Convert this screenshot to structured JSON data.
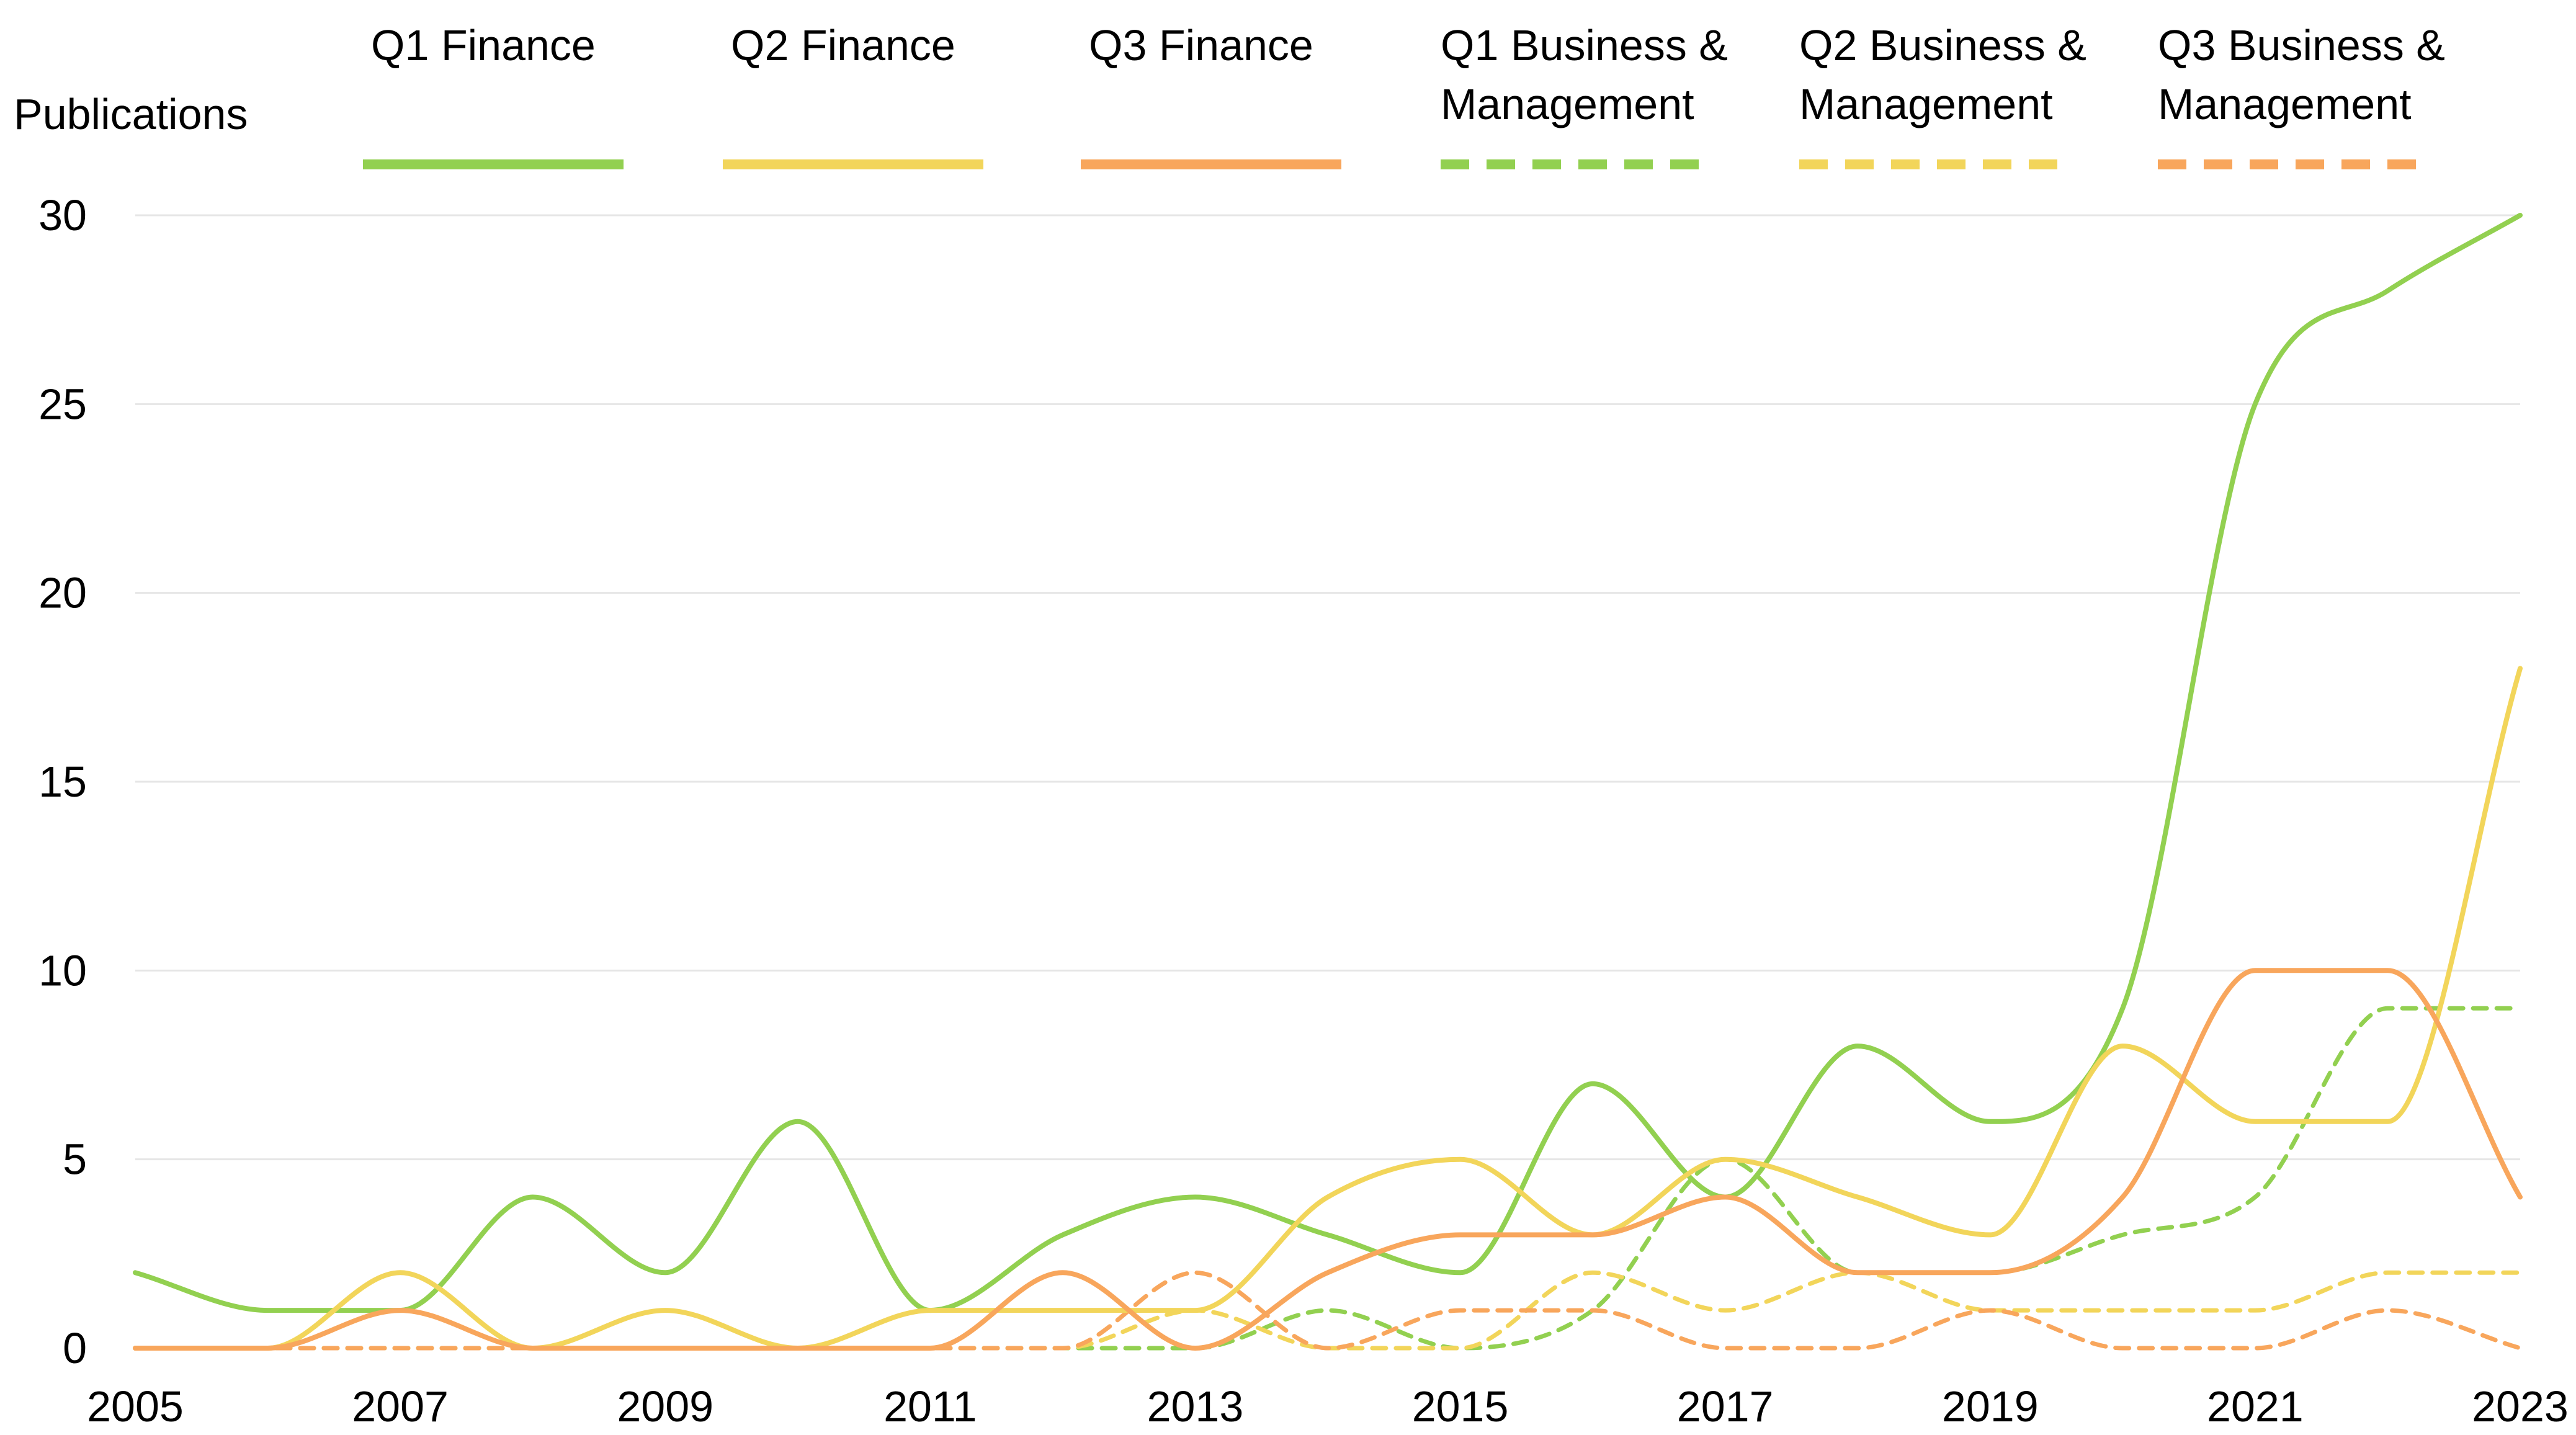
{
  "chart_data": {
    "type": "line",
    "ylabel": "Publications",
    "xlabel": "",
    "ylim": [
      0,
      30
    ],
    "yticks": [
      0,
      5,
      10,
      15,
      20,
      25,
      30
    ],
    "xlim": [
      2005,
      2023
    ],
    "xticks": [
      2005,
      2007,
      2009,
      2011,
      2013,
      2015,
      2017,
      2019,
      2021,
      2023
    ],
    "x": [
      2005,
      2006,
      2007,
      2008,
      2009,
      2010,
      2011,
      2012,
      2013,
      2014,
      2015,
      2016,
      2017,
      2018,
      2019,
      2020,
      2021,
      2022,
      2023
    ],
    "grid": true,
    "legend_position": "top",
    "series": [
      {
        "name": "Q1 Finance",
        "name_lines": [
          "Q1 Finance"
        ],
        "color": "#92d050",
        "dashed": false,
        "values": [
          2,
          1,
          1,
          4,
          2,
          6,
          1,
          3,
          4,
          3,
          2,
          7,
          4,
          8,
          6,
          9,
          25,
          28,
          30
        ]
      },
      {
        "name": "Q2 Finance",
        "name_lines": [
          "Q2 Finance"
        ],
        "color": "#f2d55a",
        "dashed": false,
        "values": [
          0,
          0,
          2,
          0,
          1,
          0,
          1,
          1,
          1,
          4,
          5,
          3,
          5,
          4,
          3,
          8,
          6,
          6,
          18
        ]
      },
      {
        "name": "Q3 Finance",
        "name_lines": [
          "Q3 Finance"
        ],
        "color": "#f8a65c",
        "dashed": false,
        "values": [
          0,
          0,
          1,
          0,
          0,
          0,
          0,
          2,
          0,
          2,
          3,
          3,
          4,
          2,
          2,
          4,
          10,
          10,
          4
        ]
      },
      {
        "name": "Q1 Business & Management",
        "name_lines": [
          "Q1 Business &",
          "Management"
        ],
        "color": "#92d050",
        "dashed": true,
        "values": [
          0,
          0,
          0,
          0,
          0,
          0,
          0,
          0,
          0,
          1,
          0,
          1,
          5,
          2,
          2,
          3,
          4,
          9,
          9
        ]
      },
      {
        "name": "Q2 Business & Management",
        "name_lines": [
          "Q2 Business &",
          "Management"
        ],
        "color": "#f2d55a",
        "dashed": true,
        "values": [
          0,
          0,
          0,
          0,
          0,
          0,
          0,
          0,
          1,
          0,
          0,
          2,
          1,
          2,
          1,
          1,
          1,
          2,
          2
        ]
      },
      {
        "name": "Q3 Business & Management",
        "name_lines": [
          "Q3 Business &",
          "Management"
        ],
        "color": "#f8a65c",
        "dashed": true,
        "values": [
          0,
          0,
          0,
          0,
          0,
          0,
          0,
          0,
          2,
          0,
          1,
          1,
          0,
          0,
          1,
          0,
          0,
          1,
          0
        ]
      }
    ]
  }
}
